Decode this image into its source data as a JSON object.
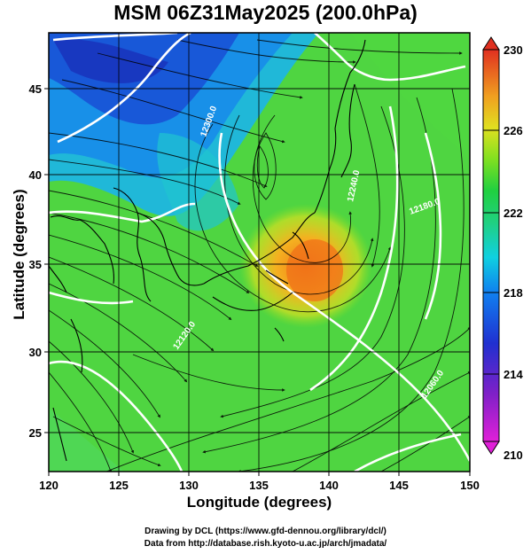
{
  "title": "MSM 06Z31May2025 (200.0hPa)",
  "x_axis": {
    "label": "Longitude (degrees)",
    "ticks": [
      "120",
      "125",
      "130",
      "135",
      "140",
      "145",
      "150"
    ],
    "range": [
      120,
      150
    ]
  },
  "y_axis": {
    "label": "Latitude  (degrees)",
    "ticks": [
      "25",
      "30",
      "35",
      "40",
      "45"
    ],
    "range": [
      22.4,
      47.6
    ]
  },
  "colorbar": {
    "min": 210,
    "max": 230,
    "ticks": [
      "210",
      "214",
      "218",
      "222",
      "226",
      "230"
    ],
    "colors": [
      "#e020e0",
      "#8020d0",
      "#2030d0",
      "#1080f0",
      "#10d0e0",
      "#20d080",
      "#20d040",
      "#80e020",
      "#e0e020",
      "#f0a020",
      "#f06020",
      "#e03020"
    ]
  },
  "contour_labels": [
    "12300.0",
    "12240.0",
    "12180.0",
    "12120.0",
    "12060.0"
  ],
  "colors": {
    "high": "#f07a1a",
    "low": "#1040c8",
    "land_outline": "#000000",
    "contour": "#ffffff"
  },
  "credits": {
    "line1": "Drawing by DCL (https://www.gfd-dennou.org/library/dcl/)",
    "line2": "Data from http://database.rish.kyoto-u.ac.jp/arch/jmadata/"
  }
}
